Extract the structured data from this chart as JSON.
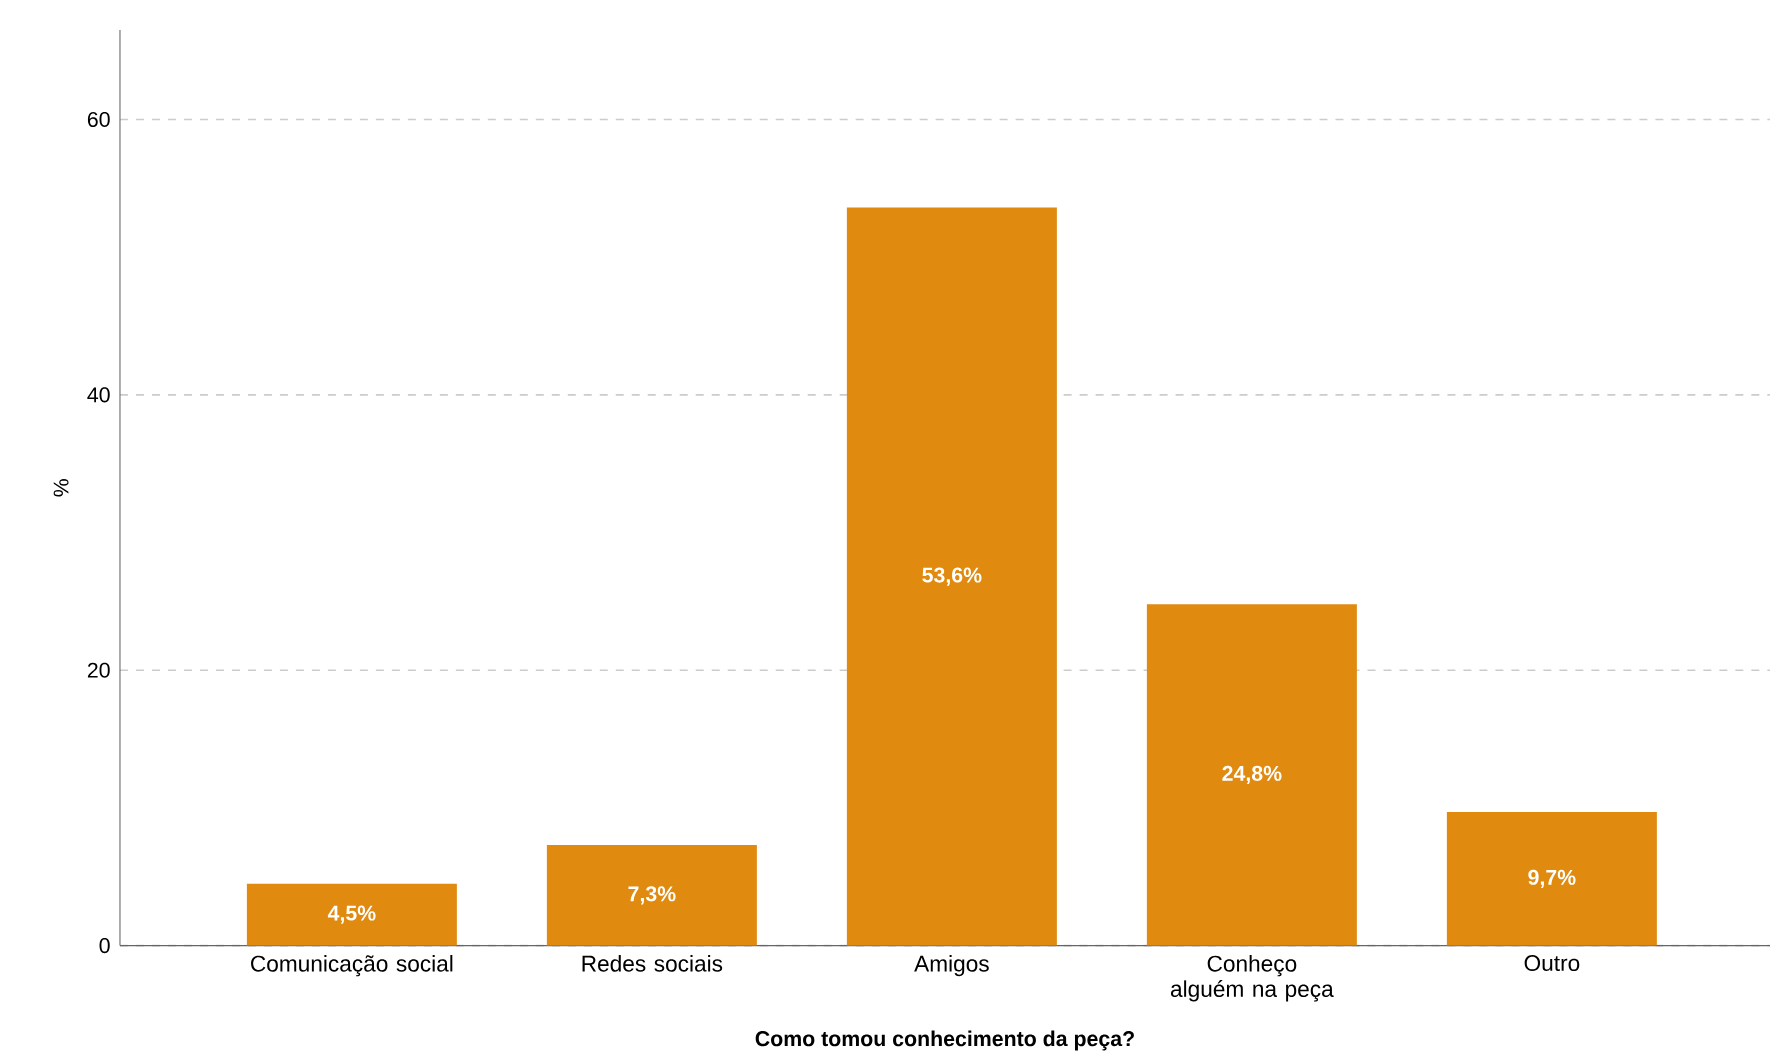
{
  "chart_data": {
    "type": "bar",
    "xlabel": "**Como tomou conhecimento da peça?**",
    "ylabel": "%",
    "categories": [
      "Comunicação social",
      "Redes sociais",
      "Amigos",
      "Conheço alguém na peça",
      "Outro"
    ],
    "values": [
      4.5,
      7.3,
      53.6,
      24.8,
      9.7
    ],
    "value_labels": [
      "4,5%",
      "7,3%",
      "53,6%",
      "24,8%",
      "9,7%"
    ],
    "color": "#e08a10",
    "ylim": [
      0,
      66.5
    ],
    "yticks": [
      0,
      20,
      40,
      60
    ],
    "grid": "y"
  }
}
